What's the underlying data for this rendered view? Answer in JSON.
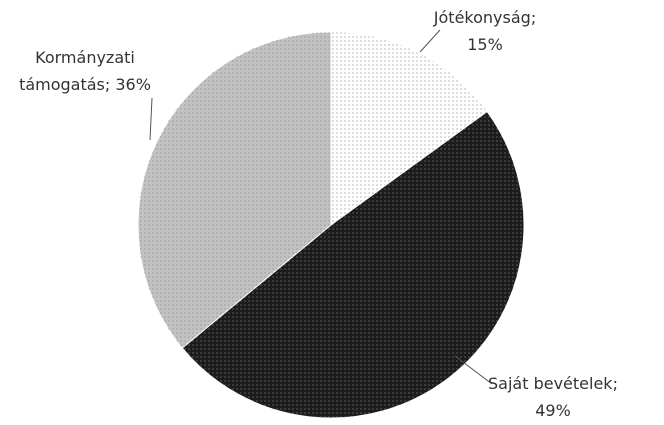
{
  "chart_data": {
    "type": "pie",
    "categories": [
      "Jótékonyság;",
      "Saját bevételek;",
      "Kormányzati támogatás;"
    ],
    "values": [
      15,
      49,
      36
    ],
    "value_labels": [
      "15%",
      "49%",
      "36%"
    ],
    "colors": [
      "#ffffff",
      "#1c1c1c",
      "#c2c2c2"
    ]
  }
}
